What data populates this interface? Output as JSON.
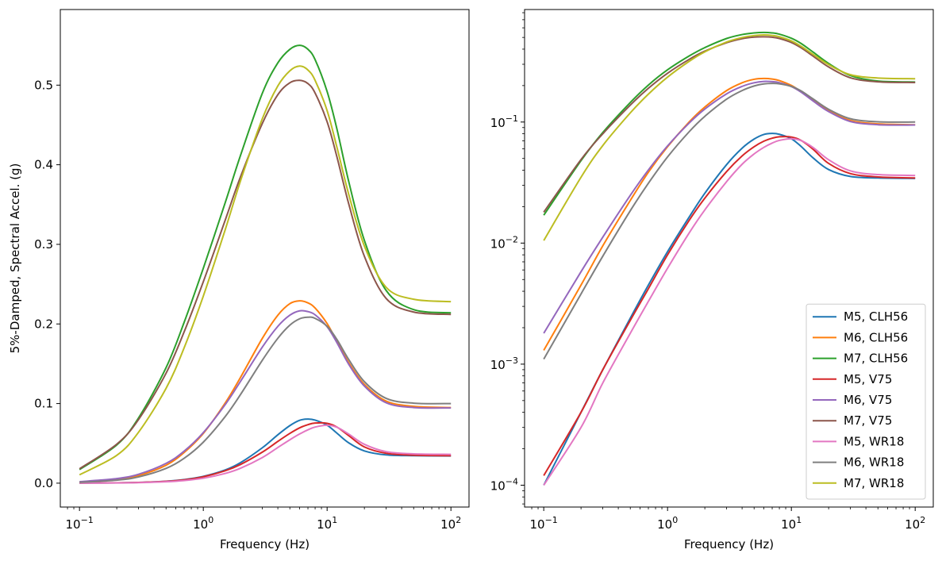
{
  "chart_data": {
    "x_values": [
      0.1,
      0.2,
      0.3,
      0.5,
      0.7,
      1.0,
      1.5,
      2.0,
      3.0,
      4.0,
      5.0,
      6.0,
      7.0,
      8.0,
      10.0,
      12.0,
      15.0,
      20.0,
      30.0,
      50.0,
      100.0
    ],
    "series": [
      {
        "name": "M5, CLH56",
        "color": "#1f77b4",
        "values": [
          0.0001,
          0.0004,
          0.0009,
          0.0024,
          0.0045,
          0.0085,
          0.0165,
          0.0258,
          0.0445,
          0.0608,
          0.0723,
          0.079,
          0.0805,
          0.0792,
          0.0728,
          0.0628,
          0.0505,
          0.0405,
          0.0355,
          0.0345,
          0.0342
        ]
      },
      {
        "name": "M6, CLH56",
        "color": "#ff7f0e",
        "values": [
          0.0013,
          0.0045,
          0.0095,
          0.0225,
          0.0385,
          0.0625,
          0.1005,
          0.133,
          0.182,
          0.211,
          0.2255,
          0.229,
          0.2265,
          0.22,
          0.2005,
          0.178,
          0.151,
          0.124,
          0.103,
          0.0965,
          0.095
        ]
      },
      {
        "name": "M7, CLH56",
        "color": "#2ca02c",
        "values": [
          0.017,
          0.048,
          0.082,
          0.145,
          0.202,
          0.27,
          0.352,
          0.412,
          0.49,
          0.528,
          0.545,
          0.55,
          0.545,
          0.532,
          0.492,
          0.445,
          0.378,
          0.305,
          0.242,
          0.218,
          0.214
        ]
      },
      {
        "name": "M5, V75",
        "color": "#d62728",
        "values": [
          0.00012,
          0.0004,
          0.0009,
          0.0023,
          0.0042,
          0.008,
          0.0155,
          0.0235,
          0.039,
          0.0525,
          0.0625,
          0.0695,
          0.0735,
          0.0755,
          0.0752,
          0.0705,
          0.0595,
          0.0455,
          0.0375,
          0.0352,
          0.0345
        ]
      },
      {
        "name": "M6, V75",
        "color": "#9467bd",
        "values": [
          0.0018,
          0.0058,
          0.0112,
          0.0248,
          0.0402,
          0.0635,
          0.0985,
          0.128,
          0.171,
          0.197,
          0.211,
          0.2165,
          0.2155,
          0.2115,
          0.1965,
          0.1765,
          0.149,
          0.122,
          0.101,
          0.095,
          0.0945
        ]
      },
      {
        "name": "M7, V75",
        "color": "#8c564b",
        "values": [
          0.018,
          0.049,
          0.08,
          0.138,
          0.19,
          0.253,
          0.33,
          0.385,
          0.452,
          0.488,
          0.503,
          0.506,
          0.502,
          0.49,
          0.454,
          0.41,
          0.35,
          0.285,
          0.232,
          0.215,
          0.212
        ]
      },
      {
        "name": "M5, WR18",
        "color": "#e377c2",
        "values": [
          0.0001,
          0.0003,
          0.0007,
          0.0018,
          0.0033,
          0.0062,
          0.0122,
          0.0188,
          0.0322,
          0.0448,
          0.0545,
          0.0618,
          0.067,
          0.0705,
          0.0728,
          0.0702,
          0.0615,
          0.0488,
          0.0395,
          0.0368,
          0.0362
        ]
      },
      {
        "name": "M6, WR18",
        "color": "#7f7f7f",
        "values": [
          0.0011,
          0.0038,
          0.0078,
          0.0185,
          0.0312,
          0.0515,
          0.0835,
          0.1115,
          0.1545,
          0.182,
          0.1985,
          0.2065,
          0.2085,
          0.207,
          0.197,
          0.1805,
          0.155,
          0.1275,
          0.1065,
          0.1005,
          0.1
        ]
      },
      {
        "name": "M7, WR18",
        "color": "#bcbd22",
        "values": [
          0.0105,
          0.035,
          0.064,
          0.119,
          0.17,
          0.235,
          0.318,
          0.38,
          0.458,
          0.499,
          0.518,
          0.524,
          0.519,
          0.506,
          0.468,
          0.422,
          0.362,
          0.298,
          0.246,
          0.231,
          0.228
        ]
      }
    ],
    "panels": [
      {
        "type": "line",
        "xscale": "log",
        "yscale": "linear",
        "xlim": [
          0.07,
          140
        ],
        "ylim": [
          -0.03,
          0.595
        ],
        "xlabel": "Frequency (Hz)",
        "ylabel": "5%-Damped, Spectral Accel. (g)",
        "x_ticks": [
          0.1,
          1,
          10,
          100
        ],
        "x_tick_labels": [
          [
            "10",
            "−1"
          ],
          [
            "10",
            "0"
          ],
          [
            "10",
            "1"
          ],
          [
            "10",
            "2"
          ]
        ],
        "y_ticks": [
          0.0,
          0.1,
          0.2,
          0.3,
          0.4,
          0.5
        ],
        "y_tick_labels": [
          "0.0",
          "0.1",
          "0.2",
          "0.3",
          "0.4",
          "0.5"
        ],
        "legend": false
      },
      {
        "type": "line",
        "xscale": "log",
        "yscale": "log",
        "xlim": [
          0.07,
          140
        ],
        "ylim": [
          6.6e-05,
          0.85
        ],
        "xlabel": "Frequency (Hz)",
        "ylabel": "",
        "x_ticks": [
          0.1,
          1,
          10,
          100
        ],
        "x_tick_labels": [
          [
            "10",
            "−1"
          ],
          [
            "10",
            "0"
          ],
          [
            "10",
            "1"
          ],
          [
            "10",
            "2"
          ]
        ],
        "y_ticks": [
          0.0001,
          0.001,
          0.01,
          0.1
        ],
        "y_tick_labels": [
          [
            "10",
            "−4"
          ],
          [
            "10",
            "−3"
          ],
          [
            "10",
            "−2"
          ],
          [
            "10",
            "−1"
          ]
        ],
        "legend": true,
        "legend_position": "lower-right"
      }
    ]
  }
}
